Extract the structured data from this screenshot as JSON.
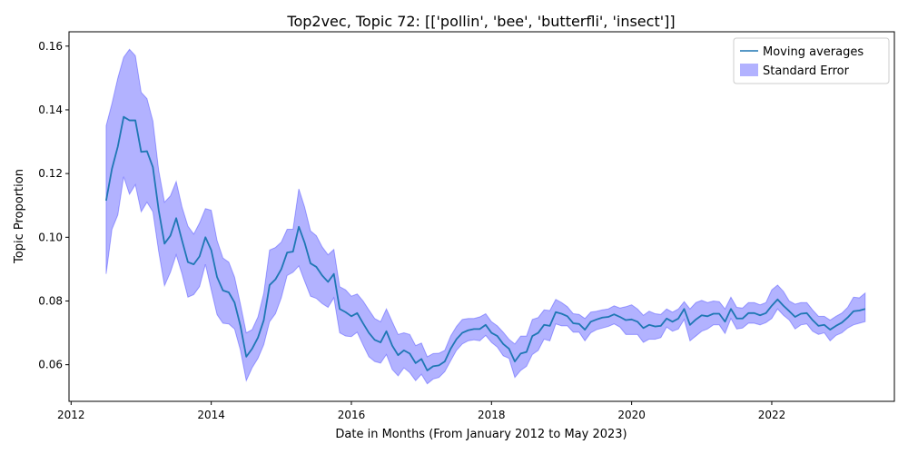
{
  "chart_data": {
    "type": "line",
    "title": "Top2vec, Topic 72: [['pollin', 'bee', 'butterfli', 'insect']]",
    "xlabel": "Date in Months (From January 2012 to May 2023)",
    "ylabel": "Topic Proportion",
    "xlim": [
      2011.97,
      2023.75
    ],
    "ylim": [
      0.0485,
      0.1645
    ],
    "xticks": [
      2012,
      2014,
      2016,
      2018,
      2020,
      2022
    ],
    "yticks": [
      0.06,
      0.08,
      0.1,
      0.12,
      0.14,
      0.16
    ],
    "ytick_labels": [
      "0.06",
      "0.08",
      "0.10",
      "0.12",
      "0.14",
      "0.16"
    ],
    "grid": false,
    "legend_position": "top-right",
    "colors": {
      "line": "#1f77b4",
      "band": "#0000ff",
      "band_opacity": 0.3
    },
    "x": [
      2012.5,
      2012.583,
      2012.667,
      2012.75,
      2012.833,
      2012.917,
      2013.0,
      2013.083,
      2013.167,
      2013.25,
      2013.333,
      2013.417,
      2013.5,
      2013.583,
      2013.667,
      2013.75,
      2013.833,
      2013.917,
      2014.0,
      2014.083,
      2014.167,
      2014.25,
      2014.333,
      2014.417,
      2014.5,
      2014.583,
      2014.667,
      2014.75,
      2014.833,
      2014.917,
      2015.0,
      2015.083,
      2015.167,
      2015.25,
      2015.333,
      2015.417,
      2015.5,
      2015.583,
      2015.667,
      2015.75,
      2015.833,
      2015.917,
      2016.0,
      2016.083,
      2016.167,
      2016.25,
      2016.333,
      2016.417,
      2016.5,
      2016.583,
      2016.667,
      2016.75,
      2016.833,
      2016.917,
      2017.0,
      2017.083,
      2017.167,
      2017.25,
      2017.333,
      2017.417,
      2017.5,
      2017.583,
      2017.667,
      2017.75,
      2017.833,
      2017.917,
      2018.0,
      2018.083,
      2018.167,
      2018.25,
      2018.333,
      2018.417,
      2018.5,
      2018.583,
      2018.667,
      2018.75,
      2018.833,
      2018.917,
      2019.0,
      2019.083,
      2019.167,
      2019.25,
      2019.333,
      2019.417,
      2019.5,
      2019.583,
      2019.667,
      2019.75,
      2019.833,
      2019.917,
      2020.0,
      2020.083,
      2020.167,
      2020.25,
      2020.333,
      2020.417,
      2020.5,
      2020.583,
      2020.667,
      2020.75,
      2020.833,
      2020.917,
      2021.0,
      2021.083,
      2021.167,
      2021.25,
      2021.333,
      2021.417,
      2021.5,
      2021.583,
      2021.667,
      2021.75,
      2021.833,
      2021.917,
      2022.0,
      2022.083,
      2022.167,
      2022.25,
      2022.333,
      2022.417,
      2022.5,
      2022.583,
      2022.667,
      2022.75,
      2022.833,
      2022.917,
      2023.0,
      2023.083,
      2023.167,
      2023.25,
      2023.333
    ],
    "series": [
      {
        "name": "Moving averages",
        "values": [
          0.1115,
          0.1215,
          0.1285,
          0.1378,
          0.1367,
          0.1367,
          0.1268,
          0.127,
          0.122,
          0.1085,
          0.098,
          0.1005,
          0.106,
          0.099,
          0.0922,
          0.0915,
          0.094,
          0.1,
          0.096,
          0.0875,
          0.0833,
          0.0827,
          0.0795,
          0.0722,
          0.0625,
          0.065,
          0.0685,
          0.074,
          0.085,
          0.0868,
          0.09,
          0.0952,
          0.0955,
          0.1033,
          0.0983,
          0.0918,
          0.0907,
          0.088,
          0.086,
          0.0885,
          0.0775,
          0.0765,
          0.0752,
          0.0762,
          0.073,
          0.07,
          0.0678,
          0.067,
          0.0705,
          0.066,
          0.063,
          0.0645,
          0.0635,
          0.0605,
          0.0618,
          0.0582,
          0.0595,
          0.0598,
          0.061,
          0.065,
          0.068,
          0.07,
          0.0708,
          0.0712,
          0.0712,
          0.0725,
          0.07,
          0.069,
          0.0665,
          0.065,
          0.061,
          0.0635,
          0.064,
          0.069,
          0.07,
          0.0725,
          0.0722,
          0.0765,
          0.076,
          0.0752,
          0.073,
          0.0728,
          0.071,
          0.0735,
          0.0742,
          0.0748,
          0.075,
          0.0758,
          0.075,
          0.074,
          0.0742,
          0.0735,
          0.0715,
          0.0725,
          0.072,
          0.0722,
          0.0745,
          0.0735,
          0.0745,
          0.0775,
          0.0725,
          0.0742,
          0.0755,
          0.0752,
          0.076,
          0.076,
          0.0735,
          0.0775,
          0.0745,
          0.0745,
          0.0762,
          0.0762,
          0.0755,
          0.0762,
          0.0785,
          0.0805,
          0.0785,
          0.0768,
          0.075,
          0.076,
          0.0762,
          0.074,
          0.0722,
          0.0725,
          0.071,
          0.0722,
          0.0732,
          0.0748,
          0.0768,
          0.077,
          0.0775
        ]
      },
      {
        "name": "Standard Error",
        "lower": [
          0.0885,
          0.1025,
          0.107,
          0.119,
          0.1135,
          0.1165,
          0.108,
          0.111,
          0.108,
          0.0955,
          0.0848,
          0.089,
          0.0945,
          0.0885,
          0.0812,
          0.082,
          0.0845,
          0.0915,
          0.0835,
          0.0757,
          0.073,
          0.0728,
          0.0712,
          0.0645,
          0.055,
          0.059,
          0.062,
          0.0663,
          0.0735,
          0.076,
          0.081,
          0.088,
          0.089,
          0.091,
          0.0862,
          0.0815,
          0.0808,
          0.0792,
          0.078,
          0.081,
          0.07,
          0.069,
          0.0688,
          0.0702,
          0.0662,
          0.0625,
          0.061,
          0.0605,
          0.0632,
          0.0585,
          0.0565,
          0.059,
          0.0575,
          0.055,
          0.057,
          0.054,
          0.0555,
          0.056,
          0.0578,
          0.0612,
          0.0645,
          0.0665,
          0.0675,
          0.0678,
          0.0675,
          0.0692,
          0.067,
          0.0655,
          0.0628,
          0.062,
          0.056,
          0.0582,
          0.0595,
          0.0632,
          0.0645,
          0.068,
          0.0675,
          0.0728,
          0.0722,
          0.0722,
          0.0702,
          0.0702,
          0.0675,
          0.07,
          0.071,
          0.0715,
          0.072,
          0.0728,
          0.0718,
          0.0695,
          0.0695,
          0.0695,
          0.067,
          0.068,
          0.068,
          0.0685,
          0.0718,
          0.0705,
          0.0712,
          0.0742,
          0.0675,
          0.069,
          0.0705,
          0.0712,
          0.0725,
          0.0725,
          0.0698,
          0.0745,
          0.0712,
          0.0715,
          0.073,
          0.073,
          0.0725,
          0.0732,
          0.0745,
          0.0775,
          0.0755,
          0.074,
          0.0712,
          0.0725,
          0.0728,
          0.0705,
          0.0695,
          0.07,
          0.0675,
          0.0692,
          0.07,
          0.0715,
          0.0725,
          0.073,
          0.0735
        ],
        "upper": [
          0.135,
          0.142,
          0.15,
          0.1565,
          0.159,
          0.157,
          0.1455,
          0.1435,
          0.1365,
          0.121,
          0.111,
          0.113,
          0.1175,
          0.1095,
          0.1035,
          0.101,
          0.1045,
          0.109,
          0.1085,
          0.099,
          0.0935,
          0.0922,
          0.0875,
          0.079,
          0.07,
          0.071,
          0.075,
          0.0825,
          0.096,
          0.0968,
          0.0985,
          0.1025,
          0.1025,
          0.1152,
          0.1095,
          0.102,
          0.1005,
          0.097,
          0.0945,
          0.0962,
          0.0845,
          0.0835,
          0.0815,
          0.0822,
          0.08,
          0.0772,
          0.0745,
          0.0735,
          0.0775,
          0.0735,
          0.0695,
          0.07,
          0.0695,
          0.066,
          0.0668,
          0.0625,
          0.0635,
          0.0636,
          0.0645,
          0.069,
          0.072,
          0.0742,
          0.0745,
          0.0745,
          0.075,
          0.076,
          0.0735,
          0.0722,
          0.0702,
          0.068,
          0.0665,
          0.069,
          0.069,
          0.0742,
          0.0748,
          0.0772,
          0.077,
          0.0805,
          0.0795,
          0.0782,
          0.076,
          0.0758,
          0.0745,
          0.0765,
          0.0768,
          0.0772,
          0.0775,
          0.0785,
          0.0778,
          0.0782,
          0.0788,
          0.0775,
          0.0755,
          0.0768,
          0.076,
          0.0758,
          0.0775,
          0.0765,
          0.0775,
          0.0798,
          0.0775,
          0.0795,
          0.0802,
          0.0795,
          0.08,
          0.0798,
          0.0775,
          0.0812,
          0.078,
          0.0778,
          0.0795,
          0.0795,
          0.0788,
          0.0795,
          0.0835,
          0.085,
          0.083,
          0.08,
          0.079,
          0.0795,
          0.0795,
          0.0772,
          0.0752,
          0.0752,
          0.074,
          0.0752,
          0.0762,
          0.078,
          0.0812,
          0.081,
          0.0825
        ]
      }
    ]
  }
}
